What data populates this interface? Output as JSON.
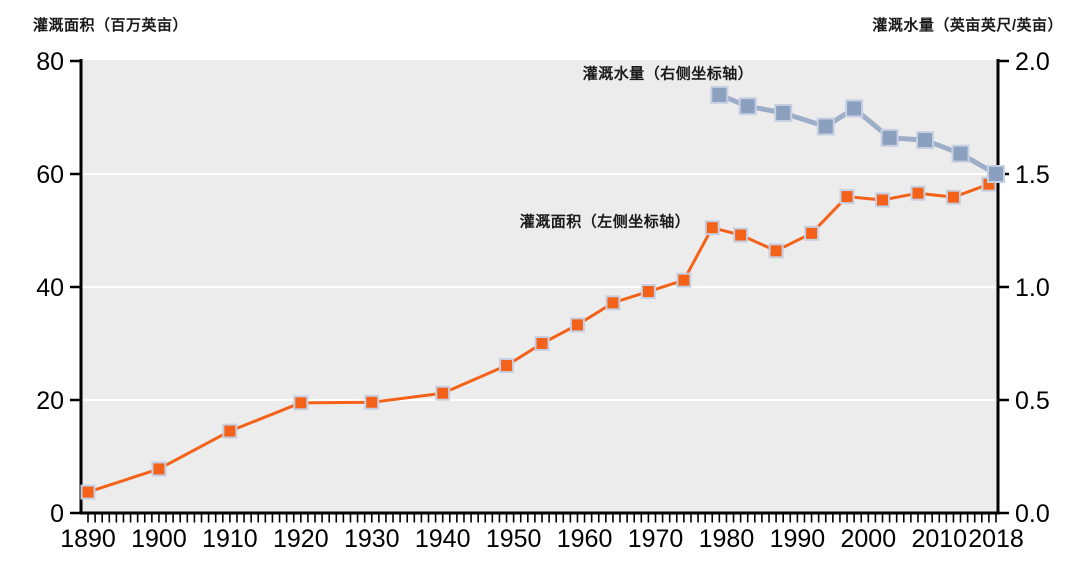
{
  "chart_data": {
    "type": "line",
    "title": "",
    "left_axis": {
      "title": "灌溉面积（百万英亩）",
      "range": [
        0,
        80
      ],
      "ticks": [
        0,
        20,
        40,
        60,
        80
      ],
      "tick_labels": [
        "0",
        "20",
        "40",
        "60",
        "80"
      ],
      "gridline_values": [
        20,
        40,
        60
      ]
    },
    "right_axis": {
      "title": "灌溉水量（英亩英尺/英亩）",
      "range": [
        0.0,
        2.0
      ],
      "ticks": [
        0.0,
        0.5,
        1.0,
        1.5,
        2.0
      ],
      "tick_labels": [
        "0.0",
        "0.5",
        "1.0",
        "1.5",
        "2.0"
      ]
    },
    "x_axis": {
      "range": [
        1890,
        2018
      ],
      "minor_tick_every_year": true,
      "tick_years": [
        1890,
        1900,
        1910,
        1920,
        1930,
        1940,
        1950,
        1960,
        1970,
        1980,
        1990,
        2000,
        2010,
        2018
      ],
      "tick_labels": [
        "1890",
        "1900",
        "1910",
        "1920",
        "1930",
        "1940",
        "1950",
        "1960",
        "1970",
        "1980",
        "1990",
        "2000",
        "2010",
        "2018"
      ]
    },
    "series": [
      {
        "name": "灌溉面积（左侧坐标轴）",
        "axis": "left",
        "color": "#F4621A",
        "marker_border": "#C6D0E2",
        "marker_size": 13,
        "line_width": 3,
        "x": [
          1890,
          1900,
          1910,
          1920,
          1930,
          1940,
          1949,
          1954,
          1959,
          1964,
          1969,
          1974,
          1978,
          1982,
          1987,
          1992,
          1997,
          2002,
          2007,
          2012,
          2017
        ],
        "values": [
          3.7,
          7.8,
          14.5,
          19.5,
          19.6,
          21.2,
          26.1,
          30.0,
          33.3,
          37.2,
          39.2,
          41.2,
          50.5,
          49.2,
          46.4,
          49.5,
          56.0,
          55.4,
          56.6,
          55.9,
          58.2
        ]
      },
      {
        "name": "灌溉水量（右侧坐标轴）",
        "axis": "right",
        "color": "#8B9FBE",
        "line_color": "#9DAEC9",
        "marker_border": "#C6D0E2",
        "marker_size": 16,
        "line_width": 5,
        "x": [
          1979,
          1983,
          1988,
          1994,
          1998,
          2003,
          2008,
          2013,
          2018
        ],
        "values": [
          1.85,
          1.8,
          1.77,
          1.71,
          1.79,
          1.66,
          1.65,
          1.59,
          1.5
        ]
      }
    ],
    "annotations": [
      {
        "text": "灌溉水量（右侧坐标轴）",
        "anchor": "water-series"
      },
      {
        "text": "灌溉面积（左侧坐标轴）",
        "anchor": "area-series"
      }
    ],
    "legend_position": "in-plot-labels",
    "plot_bg": "#ECECEC",
    "gridline_color": "#FFFFFF",
    "axis_color": "#000000"
  }
}
